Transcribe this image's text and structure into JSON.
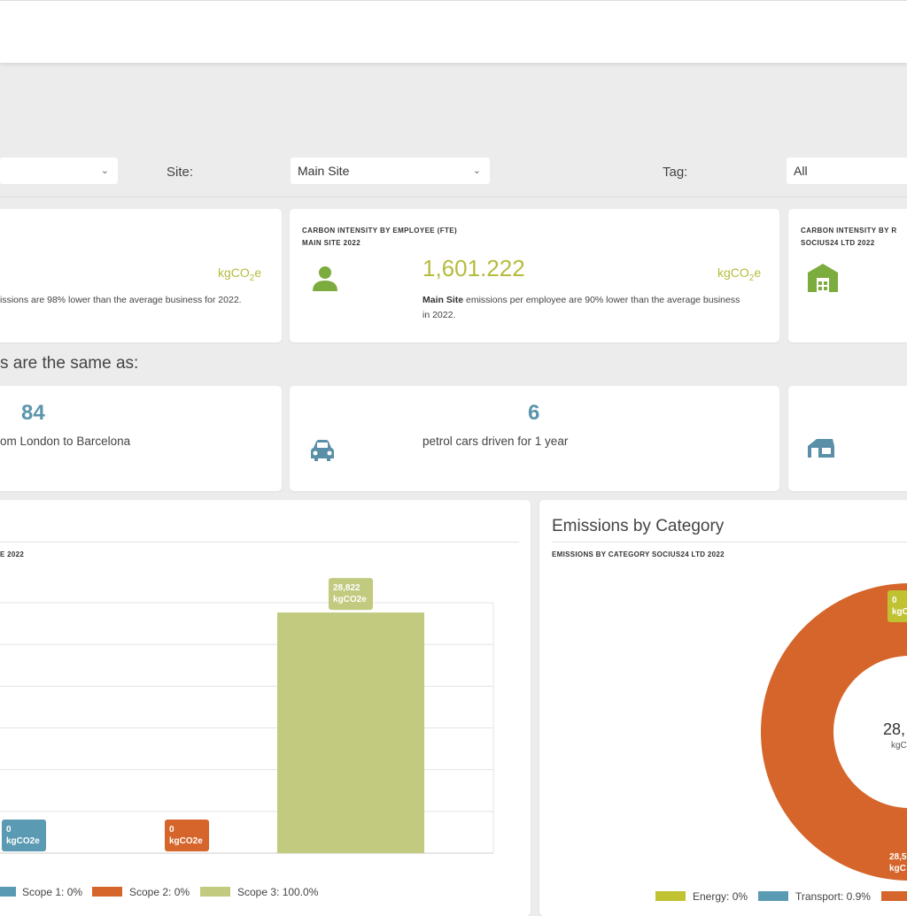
{
  "filters": {
    "first_select_value": "",
    "site_label": "Site:",
    "site_value": "Main Site",
    "tag_label": "Tag:",
    "tag_value": "All"
  },
  "intensity_cards": [
    {
      "unit_text": "kgCO",
      "unit_sub": "2",
      "unit_tail": "e",
      "description": "issions are 98% lower than the average business for 2022."
    },
    {
      "head_line1": "CARBON INTENSITY BY EMPLOYEE (FTE)",
      "head_line2": "MAIN SITE 2022",
      "value": "1,601.222",
      "unit_text": "kgCO",
      "unit_sub": "2",
      "unit_tail": "e",
      "desc_bold": "Main Site",
      "desc_rest": " emissions per employee are 90% lower than the average business in 2022.",
      "icon": "person-icon"
    },
    {
      "head_line1": "CARBON INTENSITY BY R",
      "head_line2": "SOCIUS24 LTD 2022",
      "icon": "building-icon"
    }
  ],
  "same_as_heading": "s are the same as:",
  "equivalents": [
    {
      "value": "84",
      "text": "om London to Barcelona"
    },
    {
      "value": "6",
      "text": "petrol cars driven for 1 year",
      "icon": "car-icon"
    },
    {
      "icon": "house-icon"
    }
  ],
  "colors": {
    "scope1": "#5b9ab3",
    "scope2": "#d5652a",
    "scope3": "#c1ca7e",
    "accent_green": "#b5bc3d",
    "energy": "#c0c232",
    "transport": "#5b9ab3",
    "donut": "#d5652a"
  },
  "scope_panel": {
    "subtitle": "E 2022"
  },
  "chart_data": [
    {
      "type": "bar",
      "categories": [
        "Scope 1",
        "Scope 2",
        "Scope 3"
      ],
      "values": [
        0,
        0,
        28822
      ],
      "data_labels": [
        {
          "value": "0",
          "unit": "kgCO2e"
        },
        {
          "value": "0",
          "unit": "kgCO2e"
        },
        {
          "value": "28,822",
          "unit": "kgCO2e"
        }
      ],
      "legend": [
        "Scope 1: 0%",
        "Scope 2: 0%",
        "Scope 3: 100.0%"
      ],
      "grid": true,
      "ylim": [
        0,
        30000
      ]
    },
    {
      "type": "pie",
      "title": "Emissions by Category",
      "subtitle": "EMISSIONS BY CATEGORY SOCIUS24 LTD  2022",
      "slices": [
        {
          "name": "Energy",
          "value": 0
        },
        {
          "name": "Transport",
          "value": 0.9
        },
        {
          "name": "",
          "value": 99.1
        }
      ],
      "labels": [
        {
          "value": "0",
          "unit": "kgC"
        },
        {
          "value": "28,5",
          "unit": "kgC"
        }
      ],
      "center_value": "28,",
      "center_unit": "kgC",
      "legend": [
        "Energy: 0%",
        "Transport: 0.9%"
      ]
    }
  ]
}
